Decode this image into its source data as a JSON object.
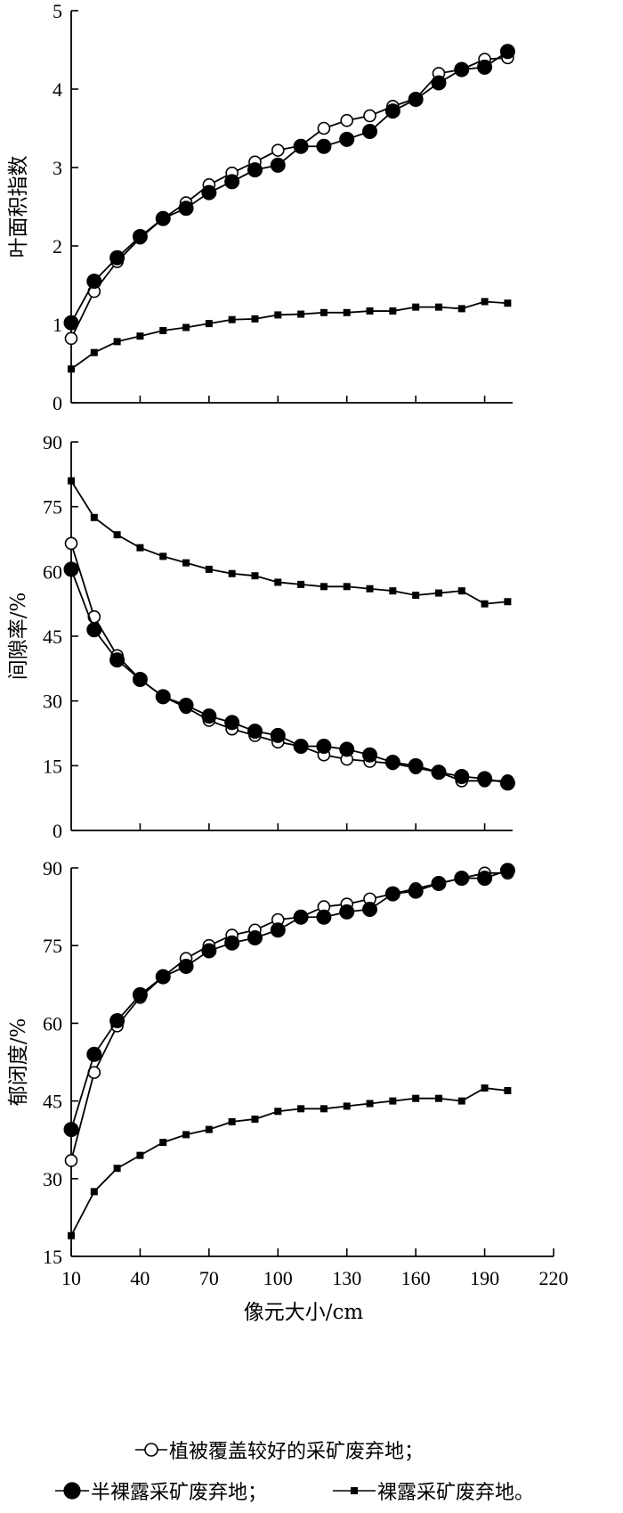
{
  "chart_data": [
    {
      "type": "line",
      "ylabel": "叶面积指数",
      "xlabel": "",
      "xlim": [
        10,
        220
      ],
      "ylim": [
        0,
        5
      ],
      "yticks": [
        0,
        1,
        2,
        3,
        4,
        5
      ],
      "x": [
        10,
        20,
        30,
        40,
        50,
        60,
        70,
        80,
        90,
        100,
        110,
        120,
        130,
        140,
        150,
        160,
        170,
        180,
        190,
        200
      ],
      "series": [
        {
          "name": "植被覆盖较好的采矿废弃地",
          "marker": "open-circle",
          "values": [
            0.82,
            1.42,
            1.8,
            2.1,
            2.35,
            2.55,
            2.78,
            2.93,
            3.07,
            3.22,
            3.28,
            3.5,
            3.6,
            3.66,
            3.78,
            3.88,
            4.2,
            4.25,
            4.38,
            4.4
          ]
        },
        {
          "name": "半裸露采矿废弃地",
          "marker": "filled-circle",
          "values": [
            1.02,
            1.55,
            1.85,
            2.12,
            2.35,
            2.48,
            2.68,
            2.82,
            2.97,
            3.03,
            3.27,
            3.27,
            3.36,
            3.46,
            3.72,
            3.87,
            4.08,
            4.25,
            4.28,
            4.48
          ]
        },
        {
          "name": "裸露采矿废弃地",
          "marker": "square",
          "values": [
            0.43,
            0.64,
            0.78,
            0.85,
            0.92,
            0.96,
            1.01,
            1.06,
            1.07,
            1.12,
            1.13,
            1.15,
            1.15,
            1.17,
            1.17,
            1.22,
            1.22,
            1.2,
            1.29,
            1.27
          ]
        }
      ]
    },
    {
      "type": "line",
      "ylabel": "间隙率/%",
      "xlabel": "",
      "xlim": [
        10,
        220
      ],
      "ylim": [
        0,
        90
      ],
      "yticks": [
        0,
        15,
        30,
        45,
        60,
        75,
        90
      ],
      "x": [
        10,
        20,
        30,
        40,
        50,
        60,
        70,
        80,
        90,
        100,
        110,
        120,
        130,
        140,
        150,
        160,
        170,
        180,
        190,
        200
      ],
      "series": [
        {
          "name": "植被覆盖较好的采矿废弃地",
          "marker": "open-circle",
          "values": [
            66.5,
            49.5,
            40.5,
            35,
            31,
            28.5,
            25.5,
            23.5,
            22,
            20.5,
            19.5,
            17.5,
            16.5,
            16,
            15.5,
            14.5,
            13.5,
            11.5,
            11.5,
            11.5
          ]
        },
        {
          "name": "半裸露采矿废弃地",
          "marker": "filled-circle",
          "values": [
            60.5,
            46.5,
            39.5,
            35,
            31,
            29,
            26.5,
            25,
            23,
            22,
            19.5,
            19.5,
            18.8,
            17.5,
            15.8,
            15,
            13.5,
            12.5,
            12,
            11
          ]
        },
        {
          "name": "裸露采矿废弃地",
          "marker": "square",
          "values": [
            81,
            72.5,
            68.5,
            65.5,
            63.5,
            62,
            60.5,
            59.5,
            59,
            57.5,
            57,
            56.5,
            56.5,
            56,
            55.5,
            54.5,
            55,
            55.5,
            52.5,
            53
          ]
        }
      ]
    },
    {
      "type": "line",
      "ylabel": "郁闭度/%",
      "xlabel": "像元大小/cm",
      "xlim": [
        10,
        220
      ],
      "ylim": [
        15,
        90
      ],
      "yticks": [
        15,
        30,
        45,
        60,
        75,
        90
      ],
      "xticks": [
        10,
        40,
        70,
        100,
        130,
        160,
        190,
        220
      ],
      "x": [
        10,
        20,
        30,
        40,
        50,
        60,
        70,
        80,
        90,
        100,
        110,
        120,
        130,
        140,
        150,
        160,
        170,
        180,
        190,
        200
      ],
      "series": [
        {
          "name": "植被覆盖较好的采矿废弃地",
          "marker": "open-circle",
          "values": [
            33.5,
            50.5,
            59.5,
            65,
            69,
            72.5,
            75,
            77,
            78,
            80,
            80.5,
            82.5,
            83,
            84,
            85,
            86,
            87,
            88,
            89,
            89
          ]
        },
        {
          "name": "半裸露采矿废弃地",
          "marker": "filled-circle",
          "values": [
            39.5,
            54,
            60.5,
            65.5,
            69,
            71,
            74,
            75.5,
            76.5,
            78,
            80.5,
            80.5,
            81.5,
            82,
            85,
            85.5,
            87,
            88,
            88,
            89.5
          ]
        },
        {
          "name": "裸露采矿废弃地",
          "marker": "square",
          "values": [
            19,
            27.5,
            32,
            34.5,
            37,
            38.5,
            39.5,
            41,
            41.5,
            43,
            43.5,
            43.5,
            44,
            44.5,
            45,
            45.5,
            45.5,
            45,
            47.5,
            47
          ]
        }
      ]
    }
  ],
  "legend": {
    "item1": "植被覆盖较好的采矿废弃地；",
    "item2": "半裸露采矿废弃地；",
    "item3": "裸露采矿废弃地。"
  }
}
